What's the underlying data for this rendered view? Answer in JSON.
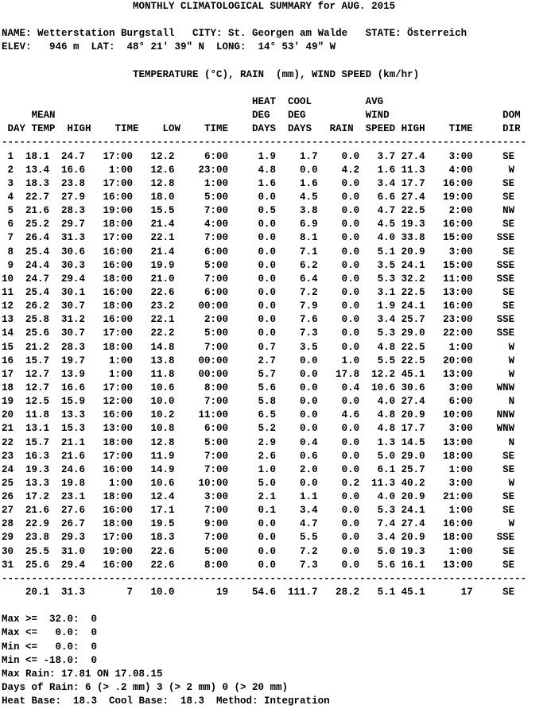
{
  "title": "MONTHLY CLIMATOLOGICAL SUMMARY for AUG. 2015",
  "station": {
    "name_label": "NAME:",
    "name": "Wetterstation Burgstall",
    "city_label": "CITY:",
    "city": "St. Georgen am Walde",
    "state_label": "STATE:",
    "state": "Österreich",
    "elev_label": "ELEV:",
    "elev": "946 m",
    "lat_label": "LAT:",
    "lat": "48° 21' 39\" N",
    "long_label": "LONG:",
    "long": "14° 53' 49\" W"
  },
  "units_line": "TEMPERATURE (°C), RAIN  (mm), WIND SPEED (km/hr)",
  "table": {
    "header_rows": [
      [
        "HEAT",
        "COOL",
        "AVG"
      ],
      [
        "MEAN",
        "DEG",
        "DEG",
        "WIND",
        "DOM"
      ],
      [
        "DAY",
        "TEMP",
        "HIGH",
        "TIME",
        "LOW",
        "TIME",
        "DAYS",
        "DAYS",
        "RAIN",
        "SPEED",
        "HIGH",
        "TIME",
        "DIR"
      ]
    ],
    "rows": [
      [
        "1",
        "18.1",
        "24.7",
        "17:00",
        "12.2",
        "6:00",
        "1.9",
        "1.7",
        "0.0",
        "3.7",
        "27.4",
        "3:00",
        "SE"
      ],
      [
        "2",
        "13.4",
        "16.6",
        "1:00",
        "12.6",
        "23:00",
        "4.8",
        "0.0",
        "4.2",
        "1.6",
        "11.3",
        "4:00",
        "W"
      ],
      [
        "3",
        "18.3",
        "23.8",
        "17:00",
        "12.8",
        "1:00",
        "1.6",
        "1.6",
        "0.0",
        "3.4",
        "17.7",
        "16:00",
        "SE"
      ],
      [
        "4",
        "22.7",
        "27.9",
        "16:00",
        "18.0",
        "5:00",
        "0.0",
        "4.5",
        "0.0",
        "6.6",
        "27.4",
        "19:00",
        "SE"
      ],
      [
        "5",
        "21.6",
        "28.3",
        "19:00",
        "15.5",
        "7:00",
        "0.5",
        "3.8",
        "0.0",
        "4.7",
        "22.5",
        "2:00",
        "NW"
      ],
      [
        "6",
        "25.2",
        "29.7",
        "18:00",
        "21.4",
        "4:00",
        "0.0",
        "6.9",
        "0.0",
        "4.5",
        "19.3",
        "16:00",
        "SE"
      ],
      [
        "7",
        "26.4",
        "31.3",
        "17:00",
        "22.1",
        "7:00",
        "0.0",
        "8.1",
        "0.0",
        "4.0",
        "33.8",
        "15:00",
        "SSE"
      ],
      [
        "8",
        "25.4",
        "30.6",
        "16:00",
        "21.4",
        "6:00",
        "0.0",
        "7.1",
        "0.0",
        "5.1",
        "20.9",
        "3:00",
        "SE"
      ],
      [
        "9",
        "24.4",
        "30.3",
        "16:00",
        "19.9",
        "5:00",
        "0.0",
        "6.2",
        "0.0",
        "3.5",
        "24.1",
        "15:00",
        "SSE"
      ],
      [
        "10",
        "24.7",
        "29.4",
        "18:00",
        "21.0",
        "7:00",
        "0.0",
        "6.4",
        "0.0",
        "5.3",
        "32.2",
        "11:00",
        "SSE"
      ],
      [
        "11",
        "25.4",
        "30.1",
        "16:00",
        "22.6",
        "6:00",
        "0.0",
        "7.2",
        "0.0",
        "3.1",
        "22.5",
        "13:00",
        "SE"
      ],
      [
        "12",
        "26.2",
        "30.7",
        "18:00",
        "23.2",
        "00:00",
        "0.0",
        "7.9",
        "0.0",
        "1.9",
        "24.1",
        "16:00",
        "SE"
      ],
      [
        "13",
        "25.8",
        "31.2",
        "16:00",
        "22.1",
        "2:00",
        "0.0",
        "7.6",
        "0.0",
        "3.4",
        "25.7",
        "23:00",
        "SSE"
      ],
      [
        "14",
        "25.6",
        "30.7",
        "17:00",
        "22.2",
        "5:00",
        "0.0",
        "7.3",
        "0.0",
        "5.3",
        "29.0",
        "22:00",
        "SSE"
      ],
      [
        "15",
        "21.2",
        "28.3",
        "18:00",
        "14.8",
        "7:00",
        "0.7",
        "3.5",
        "0.0",
        "4.8",
        "22.5",
        "1:00",
        "W"
      ],
      [
        "16",
        "15.7",
        "19.7",
        "1:00",
        "13.8",
        "00:00",
        "2.7",
        "0.0",
        "1.0",
        "5.5",
        "22.5",
        "20:00",
        "W"
      ],
      [
        "17",
        "12.7",
        "13.9",
        "1:00",
        "11.8",
        "00:00",
        "5.7",
        "0.0",
        "17.8",
        "12.2",
        "45.1",
        "13:00",
        "W"
      ],
      [
        "18",
        "12.7",
        "16.6",
        "17:00",
        "10.6",
        "8:00",
        "5.6",
        "0.0",
        "0.4",
        "10.6",
        "30.6",
        "3:00",
        "WNW"
      ],
      [
        "19",
        "12.5",
        "15.9",
        "12:00",
        "10.0",
        "7:00",
        "5.8",
        "0.0",
        "0.0",
        "4.0",
        "27.4",
        "6:00",
        "N"
      ],
      [
        "20",
        "11.8",
        "13.3",
        "16:00",
        "10.2",
        "11:00",
        "6.5",
        "0.0",
        "4.6",
        "4.8",
        "20.9",
        "10:00",
        "NNW"
      ],
      [
        "21",
        "13.1",
        "15.3",
        "13:00",
        "10.8",
        "6:00",
        "5.2",
        "0.0",
        "0.0",
        "4.8",
        "17.7",
        "3:00",
        "WNW"
      ],
      [
        "22",
        "15.7",
        "21.1",
        "18:00",
        "12.8",
        "5:00",
        "2.9",
        "0.4",
        "0.0",
        "1.3",
        "14.5",
        "13:00",
        "N"
      ],
      [
        "23",
        "16.3",
        "21.6",
        "17:00",
        "11.9",
        "7:00",
        "2.6",
        "0.6",
        "0.0",
        "5.0",
        "29.0",
        "18:00",
        "SE"
      ],
      [
        "24",
        "19.3",
        "24.6",
        "16:00",
        "14.9",
        "7:00",
        "1.0",
        "2.0",
        "0.0",
        "6.1",
        "25.7",
        "1:00",
        "SE"
      ],
      [
        "25",
        "13.3",
        "19.8",
        "1:00",
        "10.6",
        "10:00",
        "5.0",
        "0.0",
        "0.2",
        "11.3",
        "40.2",
        "3:00",
        "W"
      ],
      [
        "26",
        "17.2",
        "23.1",
        "18:00",
        "12.4",
        "3:00",
        "2.1",
        "1.1",
        "0.0",
        "4.0",
        "20.9",
        "21:00",
        "SE"
      ],
      [
        "27",
        "21.6",
        "27.6",
        "16:00",
        "17.1",
        "7:00",
        "0.1",
        "3.4",
        "0.0",
        "5.3",
        "24.1",
        "1:00",
        "SE"
      ],
      [
        "28",
        "22.9",
        "26.7",
        "18:00",
        "19.5",
        "9:00",
        "0.0",
        "4.7",
        "0.0",
        "7.4",
        "27.4",
        "16:00",
        "W"
      ],
      [
        "29",
        "23.8",
        "29.3",
        "17:00",
        "18.3",
        "7:00",
        "0.0",
        "5.5",
        "0.0",
        "3.4",
        "20.9",
        "18:00",
        "SSE"
      ],
      [
        "30",
        "25.5",
        "31.0",
        "19:00",
        "22.6",
        "5:00",
        "0.0",
        "7.2",
        "0.0",
        "5.0",
        "19.3",
        "1:00",
        "SE"
      ],
      [
        "31",
        "25.6",
        "29.4",
        "16:00",
        "22.6",
        "8:00",
        "0.0",
        "7.3",
        "0.0",
        "5.6",
        "16.1",
        "13:00",
        "SE"
      ]
    ],
    "summary": [
      "",
      "20.1",
      "31.3",
      "7",
      "10.0",
      "19",
      "54.6",
      "111.7",
      "28.2",
      "5.1",
      "45.1",
      "17",
      "SE"
    ]
  },
  "footer": {
    "thresholds": [
      {
        "label": "Max >=",
        "value": "32.0",
        "count": "0"
      },
      {
        "label": "Max <=",
        "value": "0.0",
        "count": "0"
      },
      {
        "label": "Min <=",
        "value": "0.0",
        "count": "0"
      },
      {
        "label": "Min <=",
        "value": "-18.0",
        "count": "0"
      }
    ],
    "max_rain": {
      "label": "Max Rain:",
      "value": "17.81",
      "on_label": "ON",
      "date": "17.08.15"
    },
    "days_of_rain": {
      "label": "Days of Rain:",
      "counts": [
        "6",
        "3",
        "0"
      ],
      "conditions": [
        "(> .2 mm)",
        "(> 2 mm)",
        "(> 20 mm)"
      ]
    },
    "bases": {
      "heat_label": "Heat Base:",
      "heat": "18.3",
      "cool_label": "Cool Base:",
      "cool": "18.3",
      "method_label": "Method:",
      "method": "Integration"
    }
  }
}
